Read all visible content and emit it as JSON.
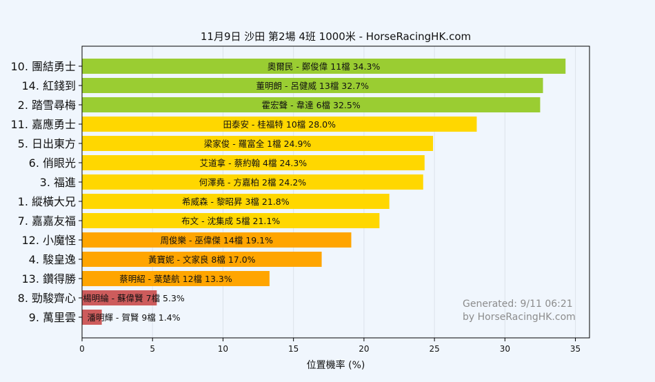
{
  "chart_data": {
    "type": "bar",
    "orientation": "horizontal",
    "title": "11月9日  沙田  第2場  4班  1000米 - HorseRacingHK.com",
    "xlabel": "位置機率 (%)",
    "ylabel": "",
    "xlim": [
      0,
      36
    ],
    "xticks": [
      0,
      5,
      10,
      15,
      20,
      25,
      30,
      35
    ],
    "grid": "vertical",
    "categories": [
      "10. 團結勇士",
      "14. 紅錢到",
      "2. 踏雪尋梅",
      "11. 嘉應勇士",
      "5. 日出東方",
      "6. 俏眼光",
      "3. 福進",
      "1. 縱橫大兄",
      "7. 嘉嘉友福",
      "12. 小魔怪",
      "4. 駿皇逸",
      "13. 鑽得勝",
      "8. 勁駿齊心",
      "9. 萬里雲"
    ],
    "values": [
      34.3,
      32.7,
      32.5,
      28.0,
      24.9,
      24.3,
      24.2,
      21.8,
      21.1,
      19.1,
      17.0,
      13.3,
      5.3,
      1.4
    ],
    "data_labels": [
      "奧爾民 - 鄭俊偉 11檔  34.3%",
      "董明朗 - 呂健威 13檔  32.7%",
      "霍宏聲 - 韋達 6檔  32.5%",
      "田泰安 - 桂福特 10檔  28.0%",
      "梁家俊 - 羅富全 1檔  24.9%",
      "艾道拿 - 蔡約翰 4檔  24.3%",
      "何澤堯 - 方嘉柏 2檔  24.2%",
      "希威森 - 黎昭昇 3檔  21.8%",
      "布文 - 沈集成 5檔  21.1%",
      "周俊樂 - 巫偉傑 14檔  19.1%",
      "黃寶妮 - 文家良 8檔  17.0%",
      "蔡明紹 - 葉楚航 12檔  13.3%",
      "楊明綸 - 蘇偉賢 7檔  5.3%",
      "潘明輝 - 賀賢 9檔  1.4%"
    ],
    "colors": [
      "#9acd32",
      "#9acd32",
      "#9acd32",
      "#ffd700",
      "#ffd700",
      "#ffd700",
      "#ffd700",
      "#ffd700",
      "#ffd700",
      "#ffa500",
      "#ffa500",
      "#ffa500",
      "#cd5c5c",
      "#cd5c5c"
    ],
    "annotation": [
      "Generated: 9/11 06:21",
      "by HorseRacingHK.com"
    ]
  }
}
